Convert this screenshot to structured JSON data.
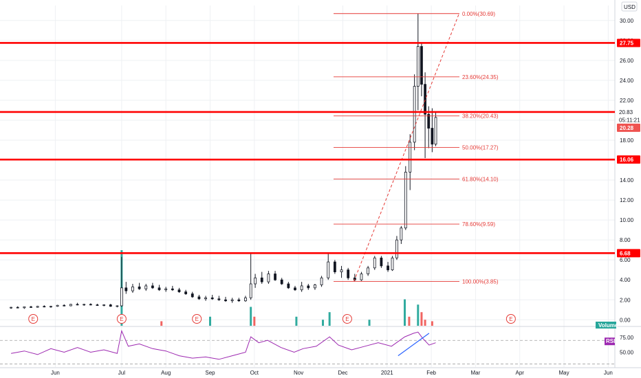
{
  "chart_data": {
    "type": "candlestick",
    "currency": "USD",
    "price_axis": {
      "ylim": [
        -0.6,
        31.5
      ],
      "ticks": [
        "0.00",
        "2.00",
        "4.00",
        "6.00",
        "8.00",
        "10.00",
        "12.00",
        "14.00",
        "16.00",
        "18.00",
        "20.00",
        "22.00",
        "24.00",
        "26.00",
        "28.00",
        "30.00"
      ],
      "tick_values": [
        0,
        2,
        4,
        6,
        8,
        10,
        12,
        14,
        16,
        18,
        20,
        22,
        24,
        26,
        28,
        30
      ]
    },
    "time_axis": {
      "labels": [
        "Jun",
        "Jul",
        "Aug",
        "Sep",
        "Oct",
        "Nov",
        "Dec",
        "2021",
        "Feb",
        "Mar",
        "Apr",
        "May",
        "Jun"
      ],
      "positions": [
        1.0,
        2.5,
        3.5,
        4.5,
        5.5,
        6.5,
        7.5,
        8.5,
        9.5,
        10.5,
        11.5,
        12.5,
        13.5
      ]
    },
    "horizontal_levels": [
      {
        "value": 27.75,
        "label": "27.75"
      },
      {
        "value": 20.83,
        "label": ""
      },
      {
        "value": 16.06,
        "label": "16.06"
      },
      {
        "value": 6.68,
        "label": "6.68"
      }
    ],
    "price_badges": [
      {
        "value": 20.83,
        "label": "20.83",
        "style": "plain"
      },
      {
        "value": 20.28,
        "label": "05:11:21",
        "style": "plain"
      },
      {
        "value": 19.5,
        "label": "20.28",
        "style": "red"
      }
    ],
    "fibonacci": {
      "start": {
        "t": 7.75,
        "price": 3.85
      },
      "end": {
        "t": 9.6,
        "price": 30.69
      },
      "levels": [
        {
          "label": "0.00%(30.69)",
          "value": 30.69
        },
        {
          "label": "23.60%(24.35)",
          "value": 24.35
        },
        {
          "label": "38.20%(20.43)",
          "value": 20.43
        },
        {
          "label": "50.00%(17.27)",
          "value": 17.27
        },
        {
          "label": "61.80%(14.10)",
          "value": 14.1
        },
        {
          "label": "78.60%(9.59)",
          "value": 9.59
        },
        {
          "label": "100.00%(3.85)",
          "value": 3.85
        }
      ]
    },
    "candles": [
      {
        "t": 0.0,
        "o": 1.2,
        "h": 1.3,
        "l": 1.1,
        "c": 1.25
      },
      {
        "t": 0.15,
        "o": 1.25,
        "h": 1.35,
        "l": 1.15,
        "c": 1.2
      },
      {
        "t": 0.3,
        "o": 1.2,
        "h": 1.3,
        "l": 1.1,
        "c": 1.3
      },
      {
        "t": 0.45,
        "o": 1.3,
        "h": 1.4,
        "l": 1.2,
        "c": 1.25
      },
      {
        "t": 0.6,
        "o": 1.25,
        "h": 1.4,
        "l": 1.2,
        "c": 1.35
      },
      {
        "t": 0.75,
        "o": 1.35,
        "h": 1.45,
        "l": 1.25,
        "c": 1.3
      },
      {
        "t": 0.9,
        "o": 1.3,
        "h": 1.4,
        "l": 1.2,
        "c": 1.35
      },
      {
        "t": 1.05,
        "o": 1.35,
        "h": 1.5,
        "l": 1.3,
        "c": 1.45
      },
      {
        "t": 1.2,
        "o": 1.45,
        "h": 1.55,
        "l": 1.35,
        "c": 1.4
      },
      {
        "t": 1.35,
        "o": 1.4,
        "h": 1.6,
        "l": 1.35,
        "c": 1.55
      },
      {
        "t": 1.5,
        "o": 1.55,
        "h": 1.7,
        "l": 1.45,
        "c": 1.5
      },
      {
        "t": 1.65,
        "o": 1.5,
        "h": 1.6,
        "l": 1.4,
        "c": 1.55
      },
      {
        "t": 1.8,
        "o": 1.55,
        "h": 1.65,
        "l": 1.45,
        "c": 1.5
      },
      {
        "t": 1.95,
        "o": 1.5,
        "h": 1.6,
        "l": 1.4,
        "c": 1.45
      },
      {
        "t": 2.1,
        "o": 1.45,
        "h": 1.55,
        "l": 1.35,
        "c": 1.5
      },
      {
        "t": 2.25,
        "o": 1.5,
        "h": 1.6,
        "l": 1.3,
        "c": 1.35
      },
      {
        "t": 2.4,
        "o": 1.35,
        "h": 1.45,
        "l": 1.25,
        "c": 1.4
      },
      {
        "t": 2.5,
        "o": 1.4,
        "h": 6.3,
        "l": 1.3,
        "c": 3.2
      },
      {
        "t": 2.6,
        "o": 3.2,
        "h": 3.8,
        "l": 2.6,
        "c": 2.9
      },
      {
        "t": 2.75,
        "o": 2.9,
        "h": 3.6,
        "l": 2.7,
        "c": 3.3
      },
      {
        "t": 2.9,
        "o": 3.3,
        "h": 3.7,
        "l": 3.0,
        "c": 3.1
      },
      {
        "t": 3.05,
        "o": 3.1,
        "h": 3.6,
        "l": 2.9,
        "c": 3.4
      },
      {
        "t": 3.2,
        "o": 3.4,
        "h": 3.7,
        "l": 3.1,
        "c": 3.2
      },
      {
        "t": 3.35,
        "o": 3.2,
        "h": 3.5,
        "l": 2.9,
        "c": 3.0
      },
      {
        "t": 3.5,
        "o": 3.0,
        "h": 3.3,
        "l": 2.8,
        "c": 3.1
      },
      {
        "t": 3.65,
        "o": 3.1,
        "h": 3.4,
        "l": 2.9,
        "c": 3.0
      },
      {
        "t": 3.8,
        "o": 3.0,
        "h": 3.2,
        "l": 2.7,
        "c": 2.8
      },
      {
        "t": 3.95,
        "o": 2.8,
        "h": 3.0,
        "l": 2.5,
        "c": 2.6
      },
      {
        "t": 4.1,
        "o": 2.6,
        "h": 2.8,
        "l": 2.2,
        "c": 2.3
      },
      {
        "t": 4.25,
        "o": 2.3,
        "h": 2.5,
        "l": 2.0,
        "c": 2.1
      },
      {
        "t": 4.4,
        "o": 2.1,
        "h": 2.4,
        "l": 1.9,
        "c": 2.2
      },
      {
        "t": 4.55,
        "o": 2.2,
        "h": 2.5,
        "l": 2.0,
        "c": 2.1
      },
      {
        "t": 4.7,
        "o": 2.1,
        "h": 2.4,
        "l": 1.9,
        "c": 2.0
      },
      {
        "t": 4.85,
        "o": 2.0,
        "h": 2.3,
        "l": 1.8,
        "c": 1.9
      },
      {
        "t": 5.0,
        "o": 1.9,
        "h": 2.2,
        "l": 1.7,
        "c": 2.0
      },
      {
        "t": 5.15,
        "o": 2.0,
        "h": 2.2,
        "l": 1.8,
        "c": 1.9
      },
      {
        "t": 5.3,
        "o": 1.9,
        "h": 2.4,
        "l": 1.8,
        "c": 2.2
      },
      {
        "t": 5.42,
        "o": 2.2,
        "h": 6.6,
        "l": 2.0,
        "c": 3.6
      },
      {
        "t": 5.52,
        "o": 3.6,
        "h": 4.6,
        "l": 3.2,
        "c": 4.2
      },
      {
        "t": 5.67,
        "o": 4.2,
        "h": 4.8,
        "l": 3.6,
        "c": 3.8
      },
      {
        "t": 5.82,
        "o": 3.8,
        "h": 4.9,
        "l": 3.6,
        "c": 4.6
      },
      {
        "t": 5.97,
        "o": 4.6,
        "h": 4.9,
        "l": 3.9,
        "c": 4.0
      },
      {
        "t": 6.12,
        "o": 4.0,
        "h": 4.2,
        "l": 3.5,
        "c": 3.6
      },
      {
        "t": 6.27,
        "o": 3.6,
        "h": 3.8,
        "l": 3.1,
        "c": 3.2
      },
      {
        "t": 6.42,
        "o": 3.2,
        "h": 3.4,
        "l": 2.9,
        "c": 3.0
      },
      {
        "t": 6.57,
        "o": 3.0,
        "h": 3.8,
        "l": 2.8,
        "c": 3.4
      },
      {
        "t": 6.72,
        "o": 3.4,
        "h": 3.6,
        "l": 3.0,
        "c": 3.2
      },
      {
        "t": 6.87,
        "o": 3.2,
        "h": 3.6,
        "l": 3.0,
        "c": 3.5
      },
      {
        "t": 7.02,
        "o": 3.5,
        "h": 4.4,
        "l": 3.3,
        "c": 4.2
      },
      {
        "t": 7.17,
        "o": 4.2,
        "h": 6.6,
        "l": 4.0,
        "c": 5.8
      },
      {
        "t": 7.32,
        "o": 5.8,
        "h": 6.0,
        "l": 4.6,
        "c": 4.8
      },
      {
        "t": 7.47,
        "o": 4.8,
        "h": 5.4,
        "l": 4.2,
        "c": 5.0
      },
      {
        "t": 7.62,
        "o": 5.0,
        "h": 5.2,
        "l": 4.0,
        "c": 4.2
      },
      {
        "t": 7.77,
        "o": 4.2,
        "h": 4.6,
        "l": 3.85,
        "c": 4.0
      },
      {
        "t": 7.92,
        "o": 4.0,
        "h": 4.8,
        "l": 3.9,
        "c": 4.6
      },
      {
        "t": 8.07,
        "o": 4.6,
        "h": 5.4,
        "l": 4.4,
        "c": 5.2
      },
      {
        "t": 8.22,
        "o": 5.2,
        "h": 6.4,
        "l": 5.0,
        "c": 6.2
      },
      {
        "t": 8.37,
        "o": 6.2,
        "h": 6.4,
        "l": 5.2,
        "c": 5.4
      },
      {
        "t": 8.52,
        "o": 5.4,
        "h": 5.8,
        "l": 4.8,
        "c": 5.0
      },
      {
        "t": 8.62,
        "o": 5.0,
        "h": 6.4,
        "l": 4.9,
        "c": 6.2
      },
      {
        "t": 8.72,
        "o": 6.2,
        "h": 8.4,
        "l": 6.0,
        "c": 8.0
      },
      {
        "t": 8.82,
        "o": 8.0,
        "h": 9.4,
        "l": 7.6,
        "c": 9.2
      },
      {
        "t": 8.92,
        "o": 9.2,
        "h": 15.4,
        "l": 9.0,
        "c": 14.8
      },
      {
        "t": 9.02,
        "o": 14.8,
        "h": 18.6,
        "l": 13.0,
        "c": 17.8
      },
      {
        "t": 9.12,
        "o": 17.8,
        "h": 24.6,
        "l": 17.0,
        "c": 23.4
      },
      {
        "t": 9.2,
        "o": 23.4,
        "h": 30.69,
        "l": 21.0,
        "c": 27.4
      },
      {
        "t": 9.28,
        "o": 27.4,
        "h": 27.75,
        "l": 22.4,
        "c": 23.6
      },
      {
        "t": 9.36,
        "o": 23.6,
        "h": 24.8,
        "l": 16.2,
        "c": 20.6
      },
      {
        "t": 9.44,
        "o": 20.6,
        "h": 21.4,
        "l": 17.2,
        "c": 19.2
      },
      {
        "t": 9.52,
        "o": 19.2,
        "h": 21.2,
        "l": 16.8,
        "c": 17.6
      },
      {
        "t": 9.6,
        "o": 17.6,
        "h": 20.83,
        "l": 17.4,
        "c": 20.28
      }
    ],
    "volume": {
      "label": "Volume",
      "bars": [
        {
          "t": 2.5,
          "v": 1.0,
          "up": true
        },
        {
          "t": 3.4,
          "v": 0.06,
          "up": false
        },
        {
          "t": 4.5,
          "v": 0.12,
          "up": true
        },
        {
          "t": 5.42,
          "v": 0.25,
          "up": true
        },
        {
          "t": 5.5,
          "v": 0.12,
          "up": false
        },
        {
          "t": 6.45,
          "v": 0.12,
          "up": true
        },
        {
          "t": 7.05,
          "v": 0.08,
          "up": true
        },
        {
          "t": 7.2,
          "v": 0.18,
          "up": true
        },
        {
          "t": 8.1,
          "v": 0.08,
          "up": true
        },
        {
          "t": 8.9,
          "v": 0.35,
          "up": true
        },
        {
          "t": 9.0,
          "v": 0.12,
          "up": false
        },
        {
          "t": 9.2,
          "v": 0.28,
          "up": true
        },
        {
          "t": 9.28,
          "v": 0.18,
          "up": false
        },
        {
          "t": 9.36,
          "v": 0.08,
          "up": false
        },
        {
          "t": 9.52,
          "v": 0.06,
          "up": false
        }
      ]
    },
    "earnings_markers": [
      {
        "t": 0.5,
        "label": "E"
      },
      {
        "t": 2.5,
        "label": "E"
      },
      {
        "t": 4.2,
        "label": "E"
      },
      {
        "t": 7.6,
        "label": "E"
      },
      {
        "t": 11.3,
        "label": "E"
      }
    ],
    "rsi": {
      "label": "RSI",
      "ylim": [
        25,
        90
      ],
      "ticks": [
        "50.00",
        "75.00"
      ],
      "tick_values": [
        50,
        75
      ],
      "bands": [
        30,
        70
      ],
      "series": [
        {
          "t": 0.0,
          "v": 48
        },
        {
          "t": 0.3,
          "v": 52
        },
        {
          "t": 0.6,
          "v": 46
        },
        {
          "t": 0.9,
          "v": 56
        },
        {
          "t": 1.2,
          "v": 50
        },
        {
          "t": 1.5,
          "v": 58
        },
        {
          "t": 1.8,
          "v": 50
        },
        {
          "t": 2.1,
          "v": 54
        },
        {
          "t": 2.4,
          "v": 48
        },
        {
          "t": 2.5,
          "v": 86
        },
        {
          "t": 2.65,
          "v": 60
        },
        {
          "t": 2.9,
          "v": 64
        },
        {
          "t": 3.2,
          "v": 56
        },
        {
          "t": 3.5,
          "v": 52
        },
        {
          "t": 3.8,
          "v": 44
        },
        {
          "t": 4.1,
          "v": 40
        },
        {
          "t": 4.4,
          "v": 42
        },
        {
          "t": 4.7,
          "v": 38
        },
        {
          "t": 5.0,
          "v": 44
        },
        {
          "t": 5.3,
          "v": 50
        },
        {
          "t": 5.42,
          "v": 76
        },
        {
          "t": 5.6,
          "v": 66
        },
        {
          "t": 5.8,
          "v": 70
        },
        {
          "t": 6.1,
          "v": 58
        },
        {
          "t": 6.4,
          "v": 50
        },
        {
          "t": 6.6,
          "v": 56
        },
        {
          "t": 6.9,
          "v": 60
        },
        {
          "t": 7.2,
          "v": 76
        },
        {
          "t": 7.4,
          "v": 62
        },
        {
          "t": 7.7,
          "v": 54
        },
        {
          "t": 8.0,
          "v": 60
        },
        {
          "t": 8.3,
          "v": 66
        },
        {
          "t": 8.6,
          "v": 60
        },
        {
          "t": 8.9,
          "v": 76
        },
        {
          "t": 9.1,
          "v": 82
        },
        {
          "t": 9.2,
          "v": 84
        },
        {
          "t": 9.3,
          "v": 74
        },
        {
          "t": 9.45,
          "v": 62
        },
        {
          "t": 9.6,
          "v": 66
        }
      ],
      "divergence_line": [
        {
          "t": 8.75,
          "v": 44
        },
        {
          "t": 9.45,
          "v": 82
        }
      ]
    }
  }
}
